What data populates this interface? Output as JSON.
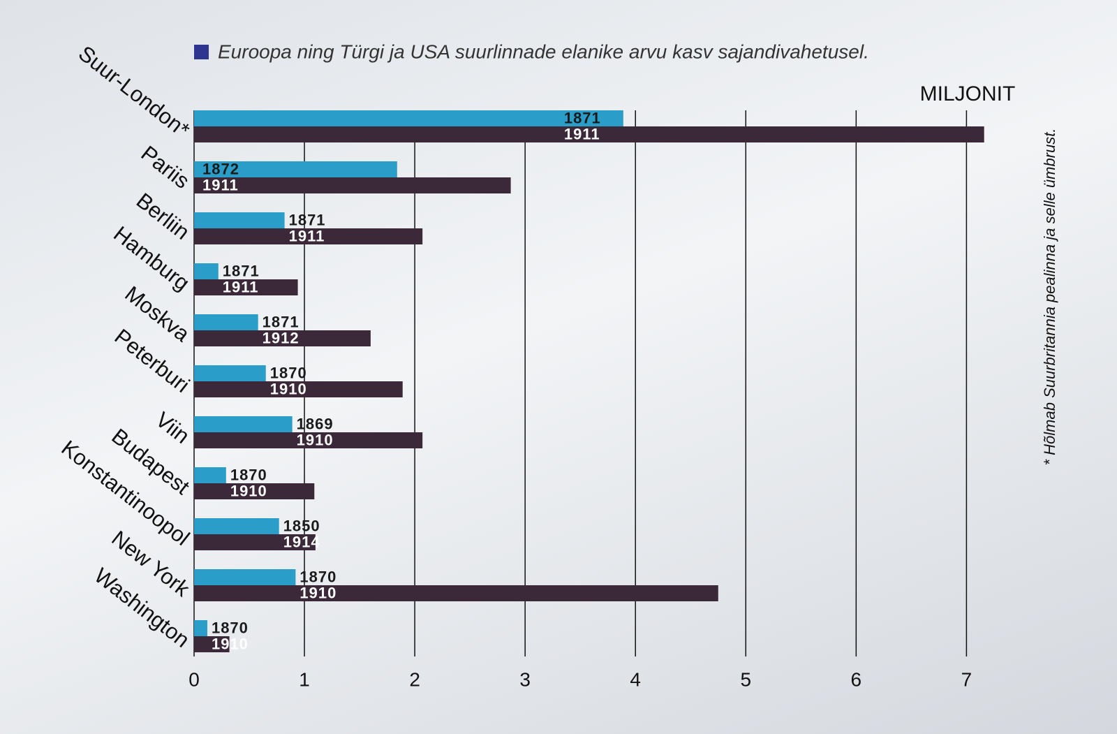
{
  "chart_data": {
    "type": "bar",
    "orientation": "horizontal",
    "legend": {
      "label": "Euroopa ning Türgi ja USA suurlinnade elanike arvu kasv sajandivahetusel.",
      "color": "#2e3590"
    },
    "unit_label": "MILJONIT",
    "footnote": "* Hõlmab Suurbritannia pealinna ja selle ümbrust.",
    "categories": [
      "Suur-London*",
      "Pariis",
      "Berliin",
      "Hamburg",
      "Moskva",
      "Peterburi",
      "Viin",
      "Budapest",
      "Konstantinoopol",
      "New York",
      "Washington"
    ],
    "series": [
      {
        "color": "#2a9ec8",
        "label_color": "#1a1a1a",
        "values": [
          3.89,
          1.84,
          0.82,
          0.22,
          0.58,
          0.65,
          0.89,
          0.29,
          0.77,
          0.92,
          0.12
        ],
        "labels": [
          1871,
          1872,
          1871,
          1871,
          1871,
          1870,
          1869,
          1870,
          1850,
          1870,
          1870
        ]
      },
      {
        "color": "#3b2838",
        "label_color": "#ffffff",
        "values": [
          7.16,
          2.87,
          2.07,
          0.94,
          1.6,
          1.89,
          2.07,
          1.09,
          1.1,
          4.75,
          0.32
        ],
        "labels": [
          1911,
          1911,
          1911,
          1911,
          1912,
          1910,
          1910,
          1910,
          1914,
          1910,
          1910
        ]
      }
    ],
    "xlim": [
      0,
      7.2
    ],
    "xticks": [
      0,
      1,
      2,
      3,
      4,
      5,
      6,
      7
    ],
    "grid": true
  }
}
